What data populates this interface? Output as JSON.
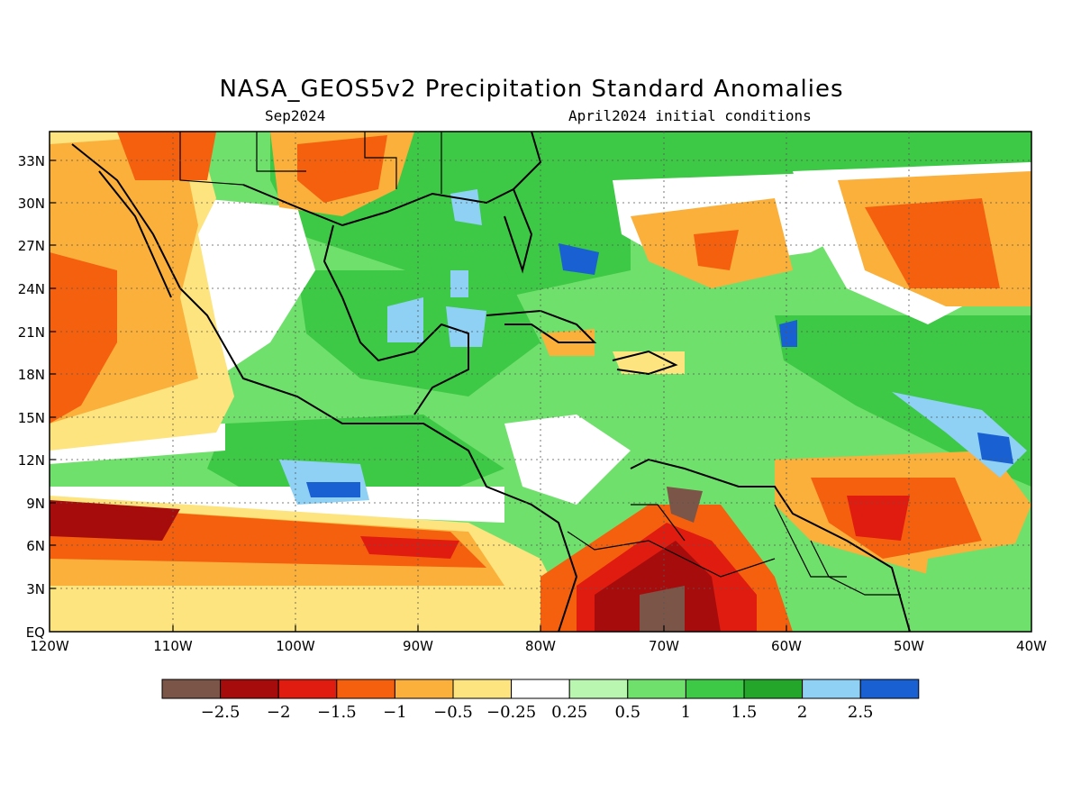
{
  "title": "NASA_GEOS5v2 Precipitation Standard Anomalies",
  "subtitle_left": "Sep2024",
  "subtitle_right": "April2024 initial conditions",
  "lat_labels": [
    "33N",
    "30N",
    "27N",
    "24N",
    "21N",
    "18N",
    "15N",
    "12N",
    "9N",
    "6N",
    "3N",
    "EQ"
  ],
  "lon_labels": [
    "120W",
    "110W",
    "100W",
    "90W",
    "80W",
    "70W",
    "60W",
    "50W",
    "40W"
  ],
  "colorbar": {
    "labels": [
      "−2.5",
      "−2",
      "−1.5",
      "−1",
      "−0.5",
      "−0.25",
      "0.25",
      "0.5",
      "1",
      "1.5",
      "2",
      "2.5"
    ],
    "colors": [
      "#7a5548",
      "#a60c0c",
      "#e01c10",
      "#f5600f",
      "#fbb03b",
      "#fde47f",
      "#ffffff",
      "#b9f7b0",
      "#70e06c",
      "#3dc845",
      "#23a62a",
      "#8fd0f5",
      "#1960d2"
    ]
  },
  "palette": {
    "very_dry": "#a60c0c",
    "dry": "#f5600f",
    "slightly_dry": "#fbb03b",
    "near_normal": "#ffffff",
    "wet": "#70e06c",
    "very_wet": "#1960d2"
  }
}
